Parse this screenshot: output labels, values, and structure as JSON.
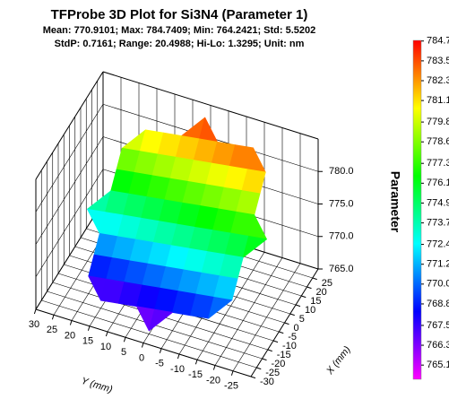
{
  "chart_data": {
    "type": "surface3d",
    "title": "TFProbe 3D Plot for Si3N4 (Parameter 1)",
    "subtitle": [
      "Mean: 770.9101; Max: 784.7409; Min: 764.2421; Std: 5.5202",
      "StdP: 0.7161; Range: 20.4988; Hi-Lo: 1.3295; Unit: nm"
    ],
    "x_label": "X (mm)",
    "y_label": "Y (mm)",
    "z_label": "Parameter",
    "xlim": [
      -30,
      30
    ],
    "xticks": [
      -30,
      -25,
      -20,
      -15,
      -10,
      -5,
      0,
      5,
      10,
      15,
      20,
      25
    ],
    "ylim": [
      -30,
      30
    ],
    "yticks": [
      -25,
      -20,
      -15,
      -10,
      -5,
      0,
      5,
      10,
      15,
      20,
      25,
      30
    ],
    "zlim": [
      765,
      785
    ],
    "zticks": [
      {
        "value": 765,
        "label": "765.0"
      },
      {
        "value": 770,
        "label": "770.0"
      },
      {
        "value": 775,
        "label": "775.0"
      },
      {
        "value": 780,
        "label": "780.0"
      }
    ],
    "x": [
      -25,
      -20,
      -15,
      -10,
      -5,
      0,
      5,
      10,
      15,
      20,
      25
    ],
    "y": [
      -25,
      -20,
      -15,
      -10,
      -5,
      0,
      5,
      10,
      15,
      20,
      25
    ],
    "z": [
      [
        null,
        null,
        null,
        null,
        null,
        777.0,
        null,
        null,
        null,
        null,
        null
      ],
      [
        null,
        null,
        770.9,
        772.8,
        774.7,
        776.6,
        778.5,
        780.4,
        782.3,
        null,
        null
      ],
      [
        null,
        768.6,
        770.5,
        772.4,
        774.3,
        776.2,
        778.1,
        780.0,
        781.9,
        783.8,
        null
      ],
      [
        null,
        768.2,
        770.1,
        772.0,
        773.9,
        775.8,
        777.7,
        779.6,
        781.5,
        783.4,
        null
      ],
      [
        null,
        767.8,
        769.7,
        771.6,
        773.5,
        775.4,
        777.3,
        779.2,
        781.1,
        783.0,
        null
      ],
      [
        765.5,
        767.4,
        769.3,
        771.2,
        773.1,
        775.0,
        776.9,
        778.8,
        780.7,
        782.6,
        784.5
      ],
      [
        null,
        767.0,
        768.9,
        770.8,
        772.7,
        774.6,
        776.5,
        778.4,
        780.3,
        782.2,
        null
      ],
      [
        null,
        766.6,
        768.5,
        770.4,
        772.3,
        774.2,
        776.1,
        778.0,
        779.9,
        781.8,
        null
      ],
      [
        null,
        766.2,
        768.1,
        770.0,
        771.9,
        773.8,
        775.7,
        777.6,
        779.5,
        781.4,
        null
      ],
      [
        null,
        null,
        767.7,
        769.6,
        771.5,
        773.4,
        775.3,
        777.2,
        779.1,
        null,
        null
      ],
      [
        null,
        null,
        null,
        null,
        null,
        773.0,
        null,
        null,
        null,
        null,
        null
      ]
    ],
    "colormap": [
      "#ff00ff",
      "#0000ff",
      "#00ffff",
      "#00ff00",
      "#ffff00",
      "#ff0000"
    ],
    "clim": [
      764.2421,
      784.7409
    ],
    "colorbar_ticks": [
      765.1,
      766.3,
      767.5,
      768.8,
      {
        "value": 770,
        "label": "770.0"
      },
      771.2,
      772.4,
      773.7,
      774.9,
      776.1,
      777.3,
      778.6,
      779.8,
      781.1,
      782.3,
      783.5,
      784.7
    ],
    "grid": true
  }
}
